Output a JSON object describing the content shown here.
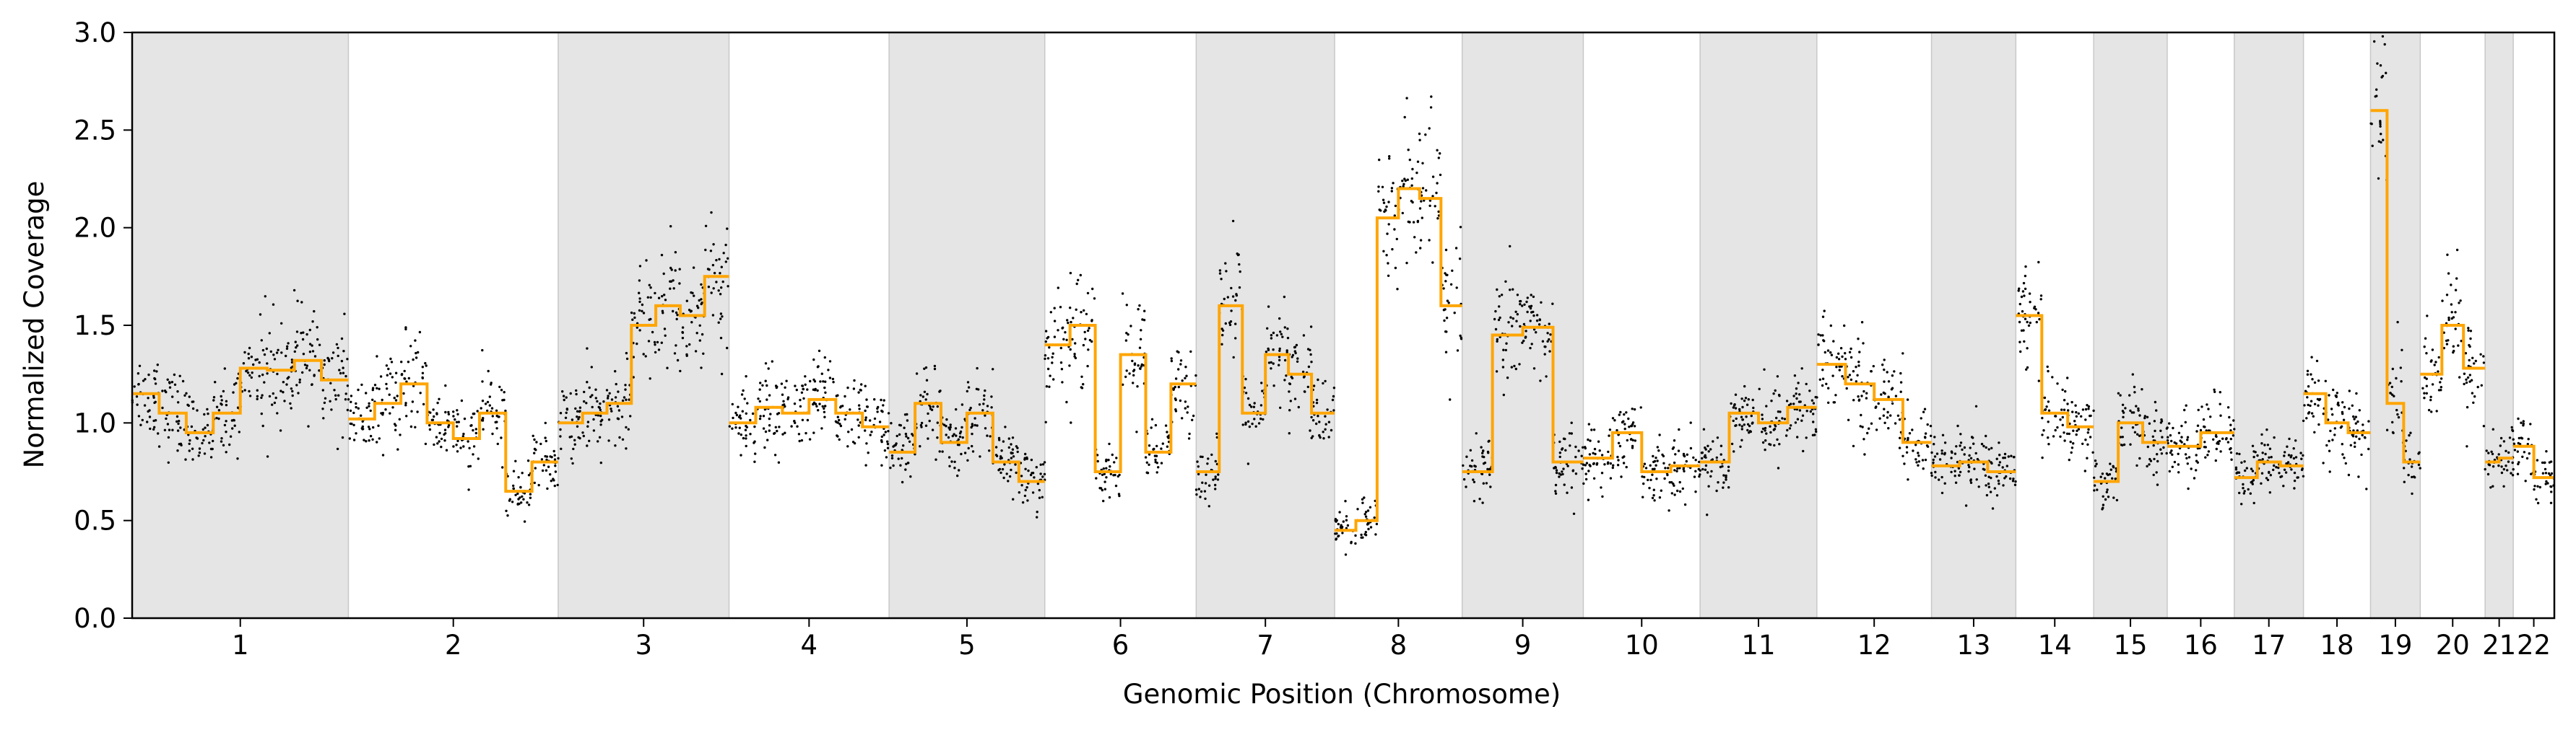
{
  "chart_data": {
    "type": "scatter",
    "xlabel": "Genomic Position (Chromosome)",
    "ylabel": "Normalized Coverage",
    "ylim": [
      0,
      3
    ],
    "yticks": [
      "0.0",
      "0.5",
      "1.0",
      "1.5",
      "2.0",
      "2.5",
      "3.0"
    ],
    "grid": false,
    "legend": "none",
    "colors": {
      "points": "#000000",
      "segments": "#ffa500",
      "band": "#e5e5e5"
    },
    "chromosomes": [
      {
        "label": "1",
        "start": 0,
        "end": 1.0,
        "shaded": true,
        "segments": [
          {
            "y": 1.15
          },
          {
            "y": 1.05
          },
          {
            "y": 0.95
          },
          {
            "y": 1.05
          },
          {
            "y": 1.28
          },
          {
            "y": 1.27
          },
          {
            "y": 1.32
          },
          {
            "y": 1.22
          }
        ]
      },
      {
        "label": "2",
        "start": 1.0,
        "end": 1.97,
        "shaded": false,
        "segments": [
          {
            "y": 1.02
          },
          {
            "y": 1.1
          },
          {
            "y": 1.2
          },
          {
            "y": 1.0
          },
          {
            "y": 0.92
          },
          {
            "y": 1.05
          },
          {
            "y": 0.65
          },
          {
            "y": 0.8
          }
        ]
      },
      {
        "label": "3",
        "start": 1.97,
        "end": 2.76,
        "shaded": true,
        "segments": [
          {
            "y": 1.0
          },
          {
            "y": 1.05
          },
          {
            "y": 1.1
          },
          {
            "y": 1.5
          },
          {
            "y": 1.6
          },
          {
            "y": 1.55
          },
          {
            "y": 1.75
          }
        ]
      },
      {
        "label": "4",
        "start": 2.76,
        "end": 3.5,
        "shaded": false,
        "segments": [
          {
            "y": 1.0
          },
          {
            "y": 1.08
          },
          {
            "y": 1.05
          },
          {
            "y": 1.12
          },
          {
            "y": 1.05
          },
          {
            "y": 0.98
          }
        ]
      },
      {
        "label": "5",
        "start": 3.5,
        "end": 4.22,
        "shaded": true,
        "segments": [
          {
            "y": 0.85
          },
          {
            "y": 1.1
          },
          {
            "y": 0.9
          },
          {
            "y": 1.05
          },
          {
            "y": 0.8
          },
          {
            "y": 0.7
          }
        ]
      },
      {
        "label": "6",
        "start": 4.22,
        "end": 4.92,
        "shaded": false,
        "segments": [
          {
            "y": 1.4
          },
          {
            "y": 1.5
          },
          {
            "y": 0.75
          },
          {
            "y": 1.35
          },
          {
            "y": 0.85
          },
          {
            "y": 1.2
          }
        ]
      },
      {
        "label": "7",
        "start": 4.92,
        "end": 5.56,
        "shaded": true,
        "segments": [
          {
            "y": 0.75
          },
          {
            "y": 1.6
          },
          {
            "y": 1.05
          },
          {
            "y": 1.35
          },
          {
            "y": 1.25
          },
          {
            "y": 1.05
          }
        ]
      },
      {
        "label": "8",
        "start": 5.56,
        "end": 6.15,
        "shaded": false,
        "segments": [
          {
            "y": 0.45
          },
          {
            "y": 0.5
          },
          {
            "y": 2.05
          },
          {
            "y": 2.2
          },
          {
            "y": 2.15
          },
          {
            "y": 1.6
          }
        ]
      },
      {
        "label": "9",
        "start": 6.15,
        "end": 6.71,
        "shaded": true,
        "segments": [
          {
            "y": 0.75
          },
          {
            "y": 1.45
          },
          {
            "y": 1.49
          },
          {
            "y": 0.8
          }
        ]
      },
      {
        "label": "10",
        "start": 6.71,
        "end": 7.25,
        "shaded": false,
        "segments": [
          {
            "y": 0.82
          },
          {
            "y": 0.95
          },
          {
            "y": 0.75
          },
          {
            "y": 0.78
          }
        ]
      },
      {
        "label": "11",
        "start": 7.25,
        "end": 7.79,
        "shaded": true,
        "segments": [
          {
            "y": 0.8
          },
          {
            "y": 1.05
          },
          {
            "y": 1.0
          },
          {
            "y": 1.08
          }
        ]
      },
      {
        "label": "12",
        "start": 7.79,
        "end": 8.32,
        "shaded": false,
        "segments": [
          {
            "y": 1.3
          },
          {
            "y": 1.2
          },
          {
            "y": 1.12
          },
          {
            "y": 0.9
          }
        ]
      },
      {
        "label": "13",
        "start": 8.32,
        "end": 8.71,
        "shaded": true,
        "segments": [
          {
            "y": 0.78
          },
          {
            "y": 0.8
          },
          {
            "y": 0.75
          }
        ]
      },
      {
        "label": "14",
        "start": 8.71,
        "end": 9.07,
        "shaded": false,
        "segments": [
          {
            "y": 1.55
          },
          {
            "y": 1.05
          },
          {
            "y": 0.98
          }
        ]
      },
      {
        "label": "15",
        "start": 9.07,
        "end": 9.41,
        "shaded": true,
        "segments": [
          {
            "y": 0.7
          },
          {
            "y": 1.0
          },
          {
            "y": 0.9
          }
        ]
      },
      {
        "label": "16",
        "start": 9.41,
        "end": 9.72,
        "shaded": false,
        "segments": [
          {
            "y": 0.88
          },
          {
            "y": 0.95
          }
        ]
      },
      {
        "label": "17",
        "start": 9.72,
        "end": 10.04,
        "shaded": true,
        "segments": [
          {
            "y": 0.72
          },
          {
            "y": 0.8
          },
          {
            "y": 0.78
          }
        ]
      },
      {
        "label": "18",
        "start": 10.04,
        "end": 10.35,
        "shaded": false,
        "segments": [
          {
            "y": 1.15
          },
          {
            "y": 1.0
          },
          {
            "y": 0.95
          }
        ]
      },
      {
        "label": "19",
        "start": 10.35,
        "end": 10.58,
        "shaded": true,
        "segments": [
          {
            "y": 2.6
          },
          {
            "y": 1.1
          },
          {
            "y": 0.8
          }
        ]
      },
      {
        "label": "20",
        "start": 10.58,
        "end": 10.88,
        "shaded": false,
        "segments": [
          {
            "y": 1.25
          },
          {
            "y": 1.5
          },
          {
            "y": 1.28
          }
        ]
      },
      {
        "label": "21",
        "start": 10.88,
        "end": 11.01,
        "shaded": true,
        "segments": [
          {
            "y": 0.8
          },
          {
            "y": 0.82
          }
        ]
      },
      {
        "label": "22",
        "start": 11.01,
        "end": 11.2,
        "shaded": false,
        "segments": [
          {
            "y": 0.88
          },
          {
            "y": 0.72
          }
        ]
      }
    ]
  }
}
